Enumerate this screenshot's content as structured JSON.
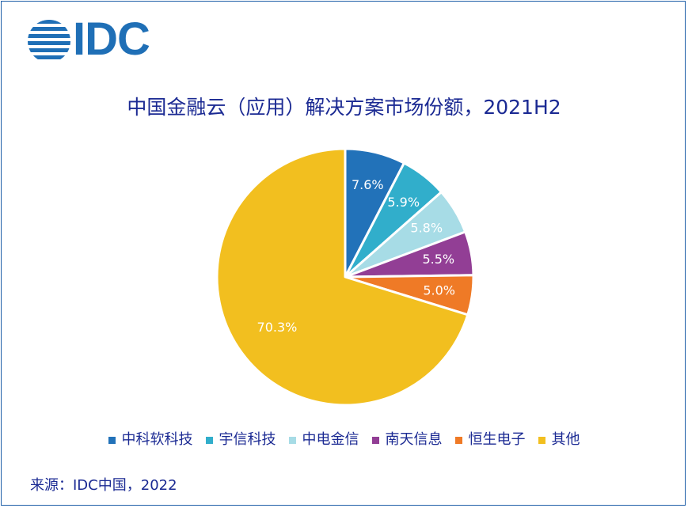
{
  "logo": {
    "text": "IDC",
    "color": "#1f6fb6"
  },
  "chart_data": {
    "type": "pie",
    "title": "中国金融云（应用）解决方案市场份额，2021H2",
    "unit": "%",
    "slices": [
      {
        "label": "中科软科技",
        "value": 7.6,
        "display": "7.6%",
        "color": "#2272b9"
      },
      {
        "label": "宇信科技",
        "value": 5.9,
        "display": "5.9%",
        "color": "#31aecb"
      },
      {
        "label": "中电金信",
        "value": 5.8,
        "display": "5.8%",
        "color": "#a7dce6"
      },
      {
        "label": "南天信息",
        "value": 5.5,
        "display": "5.5%",
        "color": "#923e95"
      },
      {
        "label": "恒生电子",
        "value": 5.0,
        "display": "5.0%",
        "color": "#ef7a26"
      },
      {
        "label": "其他",
        "value": 70.3,
        "display": "70.3%",
        "color": "#f2bf1f"
      }
    ],
    "start_angle_deg": 0,
    "direction": "clockwise",
    "legend_position": "bottom"
  },
  "source": "来源：IDC中国，2022"
}
